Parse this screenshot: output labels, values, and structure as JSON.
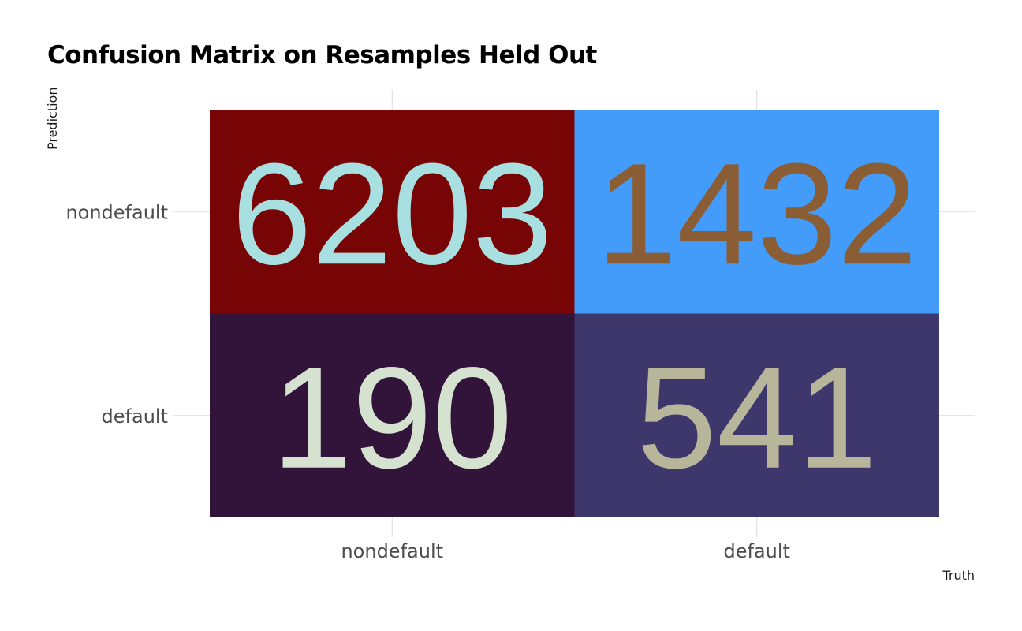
{
  "chart_data": {
    "type": "heatmap",
    "title": "Confusion Matrix on Resamples Held Out",
    "xlabel": "Truth",
    "ylabel": "Prediction",
    "x_categories": [
      "nondefault",
      "default"
    ],
    "y_categories": [
      "nondefault",
      "default"
    ],
    "cells": [
      {
        "truth": "nondefault",
        "prediction": "nondefault",
        "value": 6203,
        "fill": "#780505",
        "text_color": "#a8dfe0"
      },
      {
        "truth": "default",
        "prediction": "nondefault",
        "value": 1432,
        "fill": "#439cf9",
        "text_color": "#8b5d34"
      },
      {
        "truth": "nondefault",
        "prediction": "default",
        "value": 190,
        "fill": "#321339",
        "text_color": "#d4e2cf"
      },
      {
        "truth": "default",
        "prediction": "default",
        "value": 541,
        "fill": "#3e376b",
        "text_color": "#b7b69b"
      }
    ],
    "grid": true,
    "legend": "none"
  }
}
